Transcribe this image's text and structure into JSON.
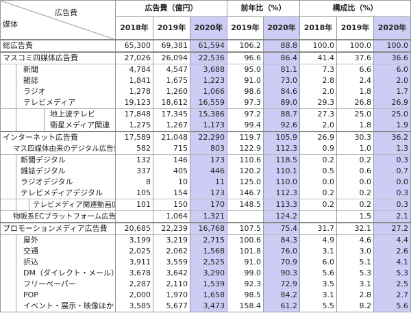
{
  "header": {
    "corner_top": "広告費",
    "corner_left": "媒体",
    "groups": [
      "広告費（億円）",
      "前年比（%）",
      "構成比（%）"
    ],
    "years": [
      "2018年",
      "2019年",
      "2020年",
      "2019年",
      "2020年",
      "2018年",
      "2019年",
      "2020年"
    ]
  },
  "highlight_color": "#ccccf4",
  "rows": [
    {
      "label": "総広告費",
      "style": "l0",
      "v": [
        "65,300",
        "69,381",
        "61,594",
        "106.2",
        "88.8",
        "100.0",
        "100.0",
        "100.0"
      ]
    },
    {
      "label": "マスコミ四媒体広告費",
      "style": "l0",
      "v": [
        "27,026",
        "26,094",
        "22,536",
        "96.6",
        "86.4",
        "41.4",
        "37.6",
        "36.6"
      ]
    },
    {
      "label": "新聞",
      "style": "box1",
      "v": [
        "4,784",
        "4,547",
        "3,688",
        "95.0",
        "81.1",
        "7.3",
        "6.6",
        "6.0"
      ]
    },
    {
      "label": "雑誌",
      "style": "box1",
      "v": [
        "1,841",
        "1,675",
        "1,223",
        "91.0",
        "73.0",
        "2.8",
        "2.4",
        "2.0"
      ]
    },
    {
      "label": "ラジオ",
      "style": "box1",
      "v": [
        "1,278",
        "1,260",
        "1,066",
        "98.6",
        "84.6",
        "2.0",
        "1.8",
        "1.7"
      ]
    },
    {
      "label": "テレビメディア",
      "style": "box1",
      "v": [
        "19,123",
        "18,612",
        "16,559",
        "97.3",
        "89.0",
        "29.3",
        "26.8",
        "26.9"
      ]
    },
    {
      "label": "地上波テレビ",
      "style": "box2",
      "v": [
        "17,848",
        "17,345",
        "15,386",
        "97.2",
        "88.7",
        "27.3",
        "25.0",
        "25.0"
      ]
    },
    {
      "label": "衛星メディア関連",
      "style": "box2",
      "v": [
        "1,275",
        "1,267",
        "1,173",
        "99.4",
        "92.6",
        "2.0",
        "1.8",
        "1.9"
      ]
    },
    {
      "label": "インターネット広告費",
      "style": "l0",
      "v": [
        "17,589",
        "21,048",
        "22,290",
        "119.7",
        "105.9",
        "26.9",
        "30.3",
        "36.2"
      ]
    },
    {
      "label": "マス四媒体由来のデジタル広告費",
      "style": "ind",
      "v": [
        "582",
        "715",
        "803",
        "122.9",
        "112.3",
        "0.9",
        "1.0",
        "1.3"
      ]
    },
    {
      "label": "新聞デジタル",
      "style": "dbox1",
      "v": [
        "132",
        "146",
        "173",
        "110.6",
        "118.5",
        "0.2",
        "0.2",
        "0.3"
      ]
    },
    {
      "label": "雑誌デジタル",
      "style": "dbox1",
      "v": [
        "337",
        "405",
        "446",
        "120.2",
        "110.1",
        "0.5",
        "0.6",
        "0.7"
      ]
    },
    {
      "label": "ラジオデジタル",
      "style": "dbox1",
      "v": [
        "8",
        "10",
        "11",
        "125.0",
        "110.0",
        "0.0",
        "0.0",
        "0.0"
      ]
    },
    {
      "label": "テレビメディアデジタル",
      "style": "dbox1",
      "v": [
        "105",
        "154",
        "173",
        "146.7",
        "112.3",
        "0.2",
        "0.2",
        "0.3"
      ]
    },
    {
      "label": "テレビメディア関連動画広告",
      "style": "dbox2",
      "v": [
        "101",
        "150",
        "170",
        "148.5",
        "113.3",
        "0.2",
        "0.2",
        "0.3"
      ]
    },
    {
      "label": "物販系ECプラットフォーム広告費",
      "style": "ind",
      "v": [
        "",
        "1,064",
        "1,321",
        "",
        "124.2",
        "",
        "1.5",
        "2.1"
      ]
    },
    {
      "label": "プロモーションメディア広告費",
      "style": "l0",
      "v": [
        "20,685",
        "22,239",
        "16,768",
        "107.5",
        "75.4",
        "31.7",
        "32.1",
        "27.2"
      ]
    },
    {
      "label": "屋外",
      "style": "box1",
      "v": [
        "3,199",
        "3,219",
        "2,715",
        "100.6",
        "84.3",
        "4.9",
        "4.6",
        "4.4"
      ]
    },
    {
      "label": "交通",
      "style": "box1",
      "v": [
        "2,025",
        "2,062",
        "1,568",
        "101.8",
        "76.0",
        "3.1",
        "3.0",
        "2.6"
      ]
    },
    {
      "label": "折込",
      "style": "box1",
      "v": [
        "3,911",
        "3,559",
        "2,525",
        "91.0",
        "70.9",
        "6.0",
        "5.1",
        "4.1"
      ]
    },
    {
      "label": "DM（ダイレクト・メール）",
      "style": "box1",
      "v": [
        "3,678",
        "3,642",
        "3,290",
        "99.0",
        "90.3",
        "5.6",
        "5.3",
        "5.3"
      ]
    },
    {
      "label": "フリーペーパー",
      "style": "box1",
      "v": [
        "2,287",
        "2,110",
        "1,539",
        "92.3",
        "72.9",
        "3.5",
        "3.1",
        "2.5"
      ]
    },
    {
      "label": "POP",
      "style": "box1",
      "v": [
        "2,000",
        "1,970",
        "1,658",
        "98.5",
        "84.2",
        "3.1",
        "2.8",
        "2.7"
      ]
    },
    {
      "label": "イベント・展示・映像ほか",
      "style": "box1",
      "v": [
        "3,585",
        "5,677",
        "3,473",
        "158.4",
        "61.2",
        "5.5",
        "8.2",
        "5.6"
      ]
    }
  ]
}
